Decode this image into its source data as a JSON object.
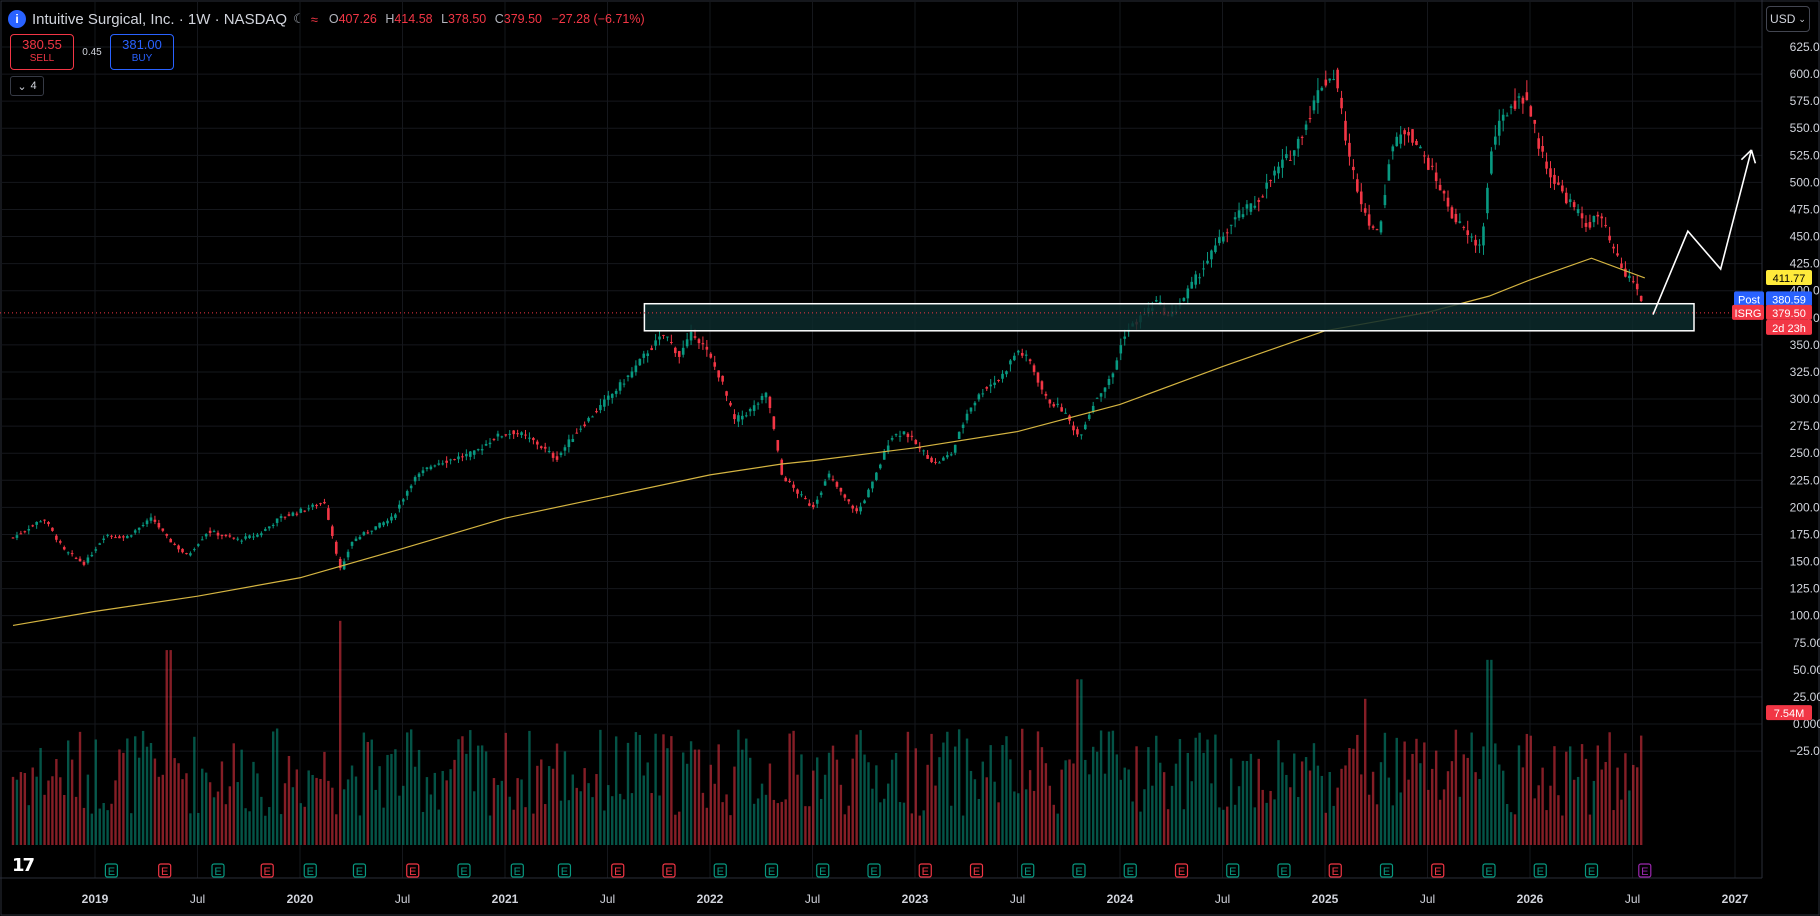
{
  "header": {
    "title": "Intuitive Surgical, Inc. · 1W · NASDAQ",
    "ohlc": {
      "open_label": "O",
      "open": "407.26",
      "high_label": "H",
      "high": "414.58",
      "low_label": "L",
      "low": "378.50",
      "close_label": "C",
      "close": "379.50",
      "change": "−27.28 (−6.71%)"
    }
  },
  "trade": {
    "sell_price": "380.55",
    "sell_label": "SELL",
    "spread": "0.45",
    "buy_price": "381.00",
    "buy_label": "BUY"
  },
  "collapse_count": "4",
  "currency": "USD",
  "colors": {
    "up": "#089981",
    "down": "#f23645",
    "ma": "#d4b441",
    "zone_fill": "#0c2a2c",
    "zone_border": "#ffffff",
    "background": "#000000"
  },
  "badges": {
    "ma_value": "411.77",
    "post_label": "Post",
    "post_value": "380.59",
    "symbol": "ISRG",
    "price": "379.50",
    "countdown": "2d 23h",
    "volume": "7.54M"
  },
  "earnings_marker": "E",
  "chart_data": {
    "type": "candlestick",
    "timeframe": "1W",
    "ylim": [
      -25,
      625
    ],
    "price_ticks": [
      625,
      600,
      575,
      550,
      525,
      500,
      475,
      450,
      425,
      400,
      375,
      350,
      325,
      300,
      275,
      250,
      225,
      200,
      175,
      150,
      125,
      100,
      75,
      50,
      25,
      0,
      -25
    ],
    "price_tick_labels": [
      "625.00",
      "600.00",
      "575.00",
      "550.00",
      "525.00",
      "500.00",
      "475.00",
      "450.00",
      "425.00",
      "400.00",
      "375.00",
      "350.00",
      "325.00",
      "300.00",
      "275.00",
      "250.00",
      "225.00",
      "200.00",
      "175.00",
      "150.00",
      "125.00",
      "100.00",
      "75.00",
      "50.00",
      "25.00",
      "0.000",
      "−25.00"
    ],
    "x_ticks": [
      {
        "t": 2019.0,
        "label": "2019"
      },
      {
        "t": 2019.5,
        "label": "Jul"
      },
      {
        "t": 2020.0,
        "label": "2020"
      },
      {
        "t": 2020.5,
        "label": "Jul"
      },
      {
        "t": 2021.0,
        "label": "2021"
      },
      {
        "t": 2021.5,
        "label": "Jul"
      },
      {
        "t": 2022.0,
        "label": "2022"
      },
      {
        "t": 2022.5,
        "label": "Jul"
      },
      {
        "t": 2023.0,
        "label": "2023"
      },
      {
        "t": 2023.5,
        "label": "Jul"
      },
      {
        "t": 2024.0,
        "label": "2024"
      },
      {
        "t": 2024.5,
        "label": "Jul"
      },
      {
        "t": 2025.0,
        "label": "2025"
      },
      {
        "t": 2025.5,
        "label": "Jul"
      },
      {
        "t": 2026.0,
        "label": "2026"
      },
      {
        "t": 2026.5,
        "label": "Jul"
      },
      {
        "t": 2027.0,
        "label": "2027"
      }
    ],
    "price_path": [
      [
        2018.6,
        172
      ],
      [
        2018.75,
        190
      ],
      [
        2018.85,
        160
      ],
      [
        2018.95,
        148
      ],
      [
        2019.05,
        175
      ],
      [
        2019.15,
        172
      ],
      [
        2019.28,
        190
      ],
      [
        2019.35,
        172
      ],
      [
        2019.45,
        155
      ],
      [
        2019.55,
        178
      ],
      [
        2019.7,
        170
      ],
      [
        2019.8,
        175
      ],
      [
        2019.9,
        190
      ],
      [
        2020.05,
        200
      ],
      [
        2020.12,
        205
      ],
      [
        2020.2,
        140
      ],
      [
        2020.25,
        168
      ],
      [
        2020.35,
        180
      ],
      [
        2020.45,
        190
      ],
      [
        2020.55,
        225
      ],
      [
        2020.65,
        240
      ],
      [
        2020.75,
        245
      ],
      [
        2020.85,
        250
      ],
      [
        2020.95,
        265
      ],
      [
        2021.05,
        270
      ],
      [
        2021.15,
        260
      ],
      [
        2021.25,
        245
      ],
      [
        2021.35,
        270
      ],
      [
        2021.45,
        290
      ],
      [
        2021.55,
        310
      ],
      [
        2021.62,
        325
      ],
      [
        2021.7,
        345
      ],
      [
        2021.78,
        360
      ],
      [
        2021.85,
        340
      ],
      [
        2021.92,
        362
      ],
      [
        2021.98,
        345
      ],
      [
        2022.05,
        320
      ],
      [
        2022.12,
        280
      ],
      [
        2022.2,
        290
      ],
      [
        2022.28,
        305
      ],
      [
        2022.35,
        230
      ],
      [
        2022.42,
        215
      ],
      [
        2022.5,
        200
      ],
      [
        2022.58,
        230
      ],
      [
        2022.65,
        210
      ],
      [
        2022.72,
        195
      ],
      [
        2022.8,
        225
      ],
      [
        2022.88,
        265
      ],
      [
        2022.95,
        270
      ],
      [
        2023.02,
        255
      ],
      [
        2023.1,
        240
      ],
      [
        2023.18,
        250
      ],
      [
        2023.26,
        290
      ],
      [
        2023.34,
        310
      ],
      [
        2023.42,
        320
      ],
      [
        2023.5,
        345
      ],
      [
        2023.56,
        335
      ],
      [
        2023.64,
        300
      ],
      [
        2023.72,
        290
      ],
      [
        2023.8,
        265
      ],
      [
        2023.88,
        300
      ],
      [
        2023.96,
        320
      ],
      [
        2024.02,
        360
      ],
      [
        2024.1,
        375
      ],
      [
        2024.18,
        390
      ],
      [
        2024.24,
        375
      ],
      [
        2024.3,
        390
      ],
      [
        2024.4,
        420
      ],
      [
        2024.5,
        450
      ],
      [
        2024.58,
        470
      ],
      [
        2024.66,
        480
      ],
      [
        2024.76,
        510
      ],
      [
        2024.85,
        530
      ],
      [
        2024.92,
        560
      ],
      [
        2024.98,
        590
      ],
      [
        2025.05,
        600
      ],
      [
        2025.12,
        520
      ],
      [
        2025.2,
        470
      ],
      [
        2025.26,
        450
      ],
      [
        2025.32,
        530
      ],
      [
        2025.4,
        550
      ],
      [
        2025.48,
        525
      ],
      [
        2025.55,
        500
      ],
      [
        2025.62,
        470
      ],
      [
        2025.7,
        450
      ],
      [
        2025.76,
        440
      ],
      [
        2025.82,
        540
      ],
      [
        2025.9,
        570
      ],
      [
        2025.98,
        580
      ],
      [
        2026.05,
        530
      ],
      [
        2026.12,
        500
      ],
      [
        2026.2,
        480
      ],
      [
        2026.28,
        460
      ],
      [
        2026.34,
        470
      ],
      [
        2026.4,
        440
      ],
      [
        2026.46,
        415
      ],
      [
        2026.51,
        408
      ],
      [
        2026.56,
        379.5
      ]
    ],
    "moving_average": [
      [
        2018.6,
        91
      ],
      [
        2019.0,
        104
      ],
      [
        2019.5,
        118
      ],
      [
        2020.0,
        135
      ],
      [
        2020.5,
        162
      ],
      [
        2021.0,
        190
      ],
      [
        2021.5,
        210
      ],
      [
        2022.0,
        230
      ],
      [
        2022.35,
        240
      ],
      [
        2022.5,
        243
      ],
      [
        2023.0,
        255
      ],
      [
        2023.5,
        270
      ],
      [
        2024.0,
        295
      ],
      [
        2024.5,
        330
      ],
      [
        2025.0,
        363
      ],
      [
        2025.5,
        380
      ],
      [
        2025.8,
        395
      ],
      [
        2026.0,
        410
      ],
      [
        2026.3,
        430
      ],
      [
        2026.56,
        411.77
      ]
    ],
    "support_zone": {
      "price_low": 363,
      "price_high": 388,
      "t_start": 2021.68,
      "t_end": 2026.8
    },
    "projection_path": [
      [
        2026.6,
        378
      ],
      [
        2026.77,
        455
      ],
      [
        2026.93,
        420
      ],
      [
        2027.08,
        530
      ]
    ],
    "volume_scale_max": 110,
    "volume_spikes": [
      [
        2019.36,
        100
      ],
      [
        2020.2,
        115
      ],
      [
        2023.8,
        85
      ],
      [
        2025.2,
        75
      ],
      [
        2025.8,
        95
      ]
    ],
    "earnings_t": [
      2019.08,
      2019.34,
      2019.6,
      2019.84,
      2020.05,
      2020.29,
      2020.55,
      2020.8,
      2021.06,
      2021.29,
      2021.55,
      2021.8,
      2022.05,
      2022.3,
      2022.55,
      2022.8,
      2023.05,
      2023.3,
      2023.55,
      2023.8,
      2024.05,
      2024.3,
      2024.55,
      2024.8,
      2025.05,
      2025.3,
      2025.55,
      2025.8,
      2026.05,
      2026.3,
      2026.56
    ]
  }
}
